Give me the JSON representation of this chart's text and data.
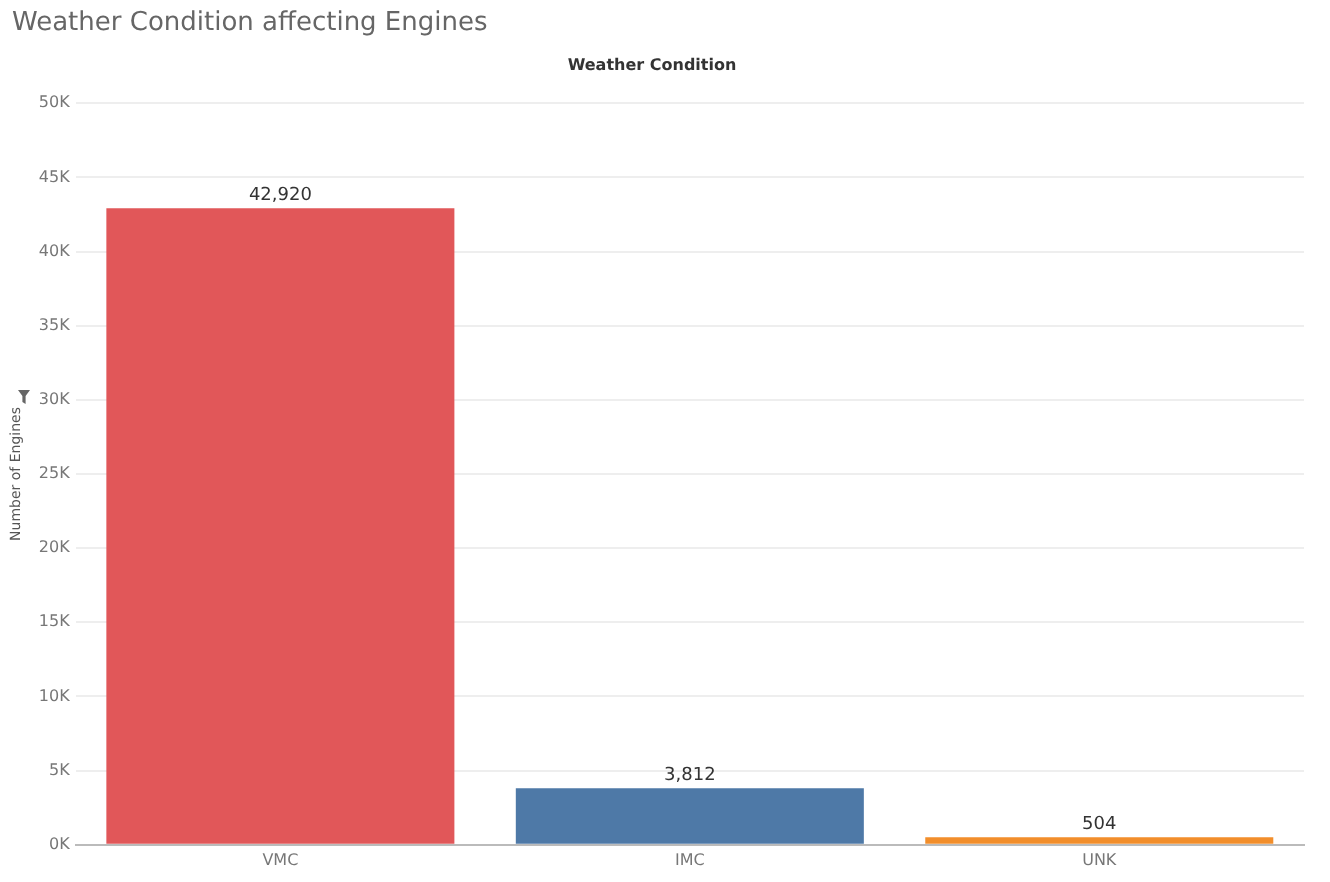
{
  "chart_data": {
    "type": "bar",
    "title": "Weather Condition affecting Engines",
    "subtitle": "Weather Condition",
    "ylabel": "Number of Engines",
    "categories": [
      "VMC",
      "IMC",
      "UNK"
    ],
    "values": [
      42920,
      3812,
      504
    ],
    "colors": [
      "#e15759",
      "#4e79a7",
      "#f28e2b"
    ],
    "value_labels": [
      "42,920",
      "3,812",
      "504"
    ],
    "ylim": [
      0,
      50000
    ],
    "yticks": [
      {
        "value": 0,
        "label": "0K"
      },
      {
        "value": 5000,
        "label": "5K"
      },
      {
        "value": 10000,
        "label": "10K"
      },
      {
        "value": 15000,
        "label": "15K"
      },
      {
        "value": 20000,
        "label": "20K"
      },
      {
        "value": 25000,
        "label": "25K"
      },
      {
        "value": 30000,
        "label": "30K"
      },
      {
        "value": 35000,
        "label": "35K"
      },
      {
        "value": 40000,
        "label": "40K"
      },
      {
        "value": 45000,
        "label": "45K"
      },
      {
        "value": 50000,
        "label": "50K"
      }
    ],
    "grid": "y"
  }
}
